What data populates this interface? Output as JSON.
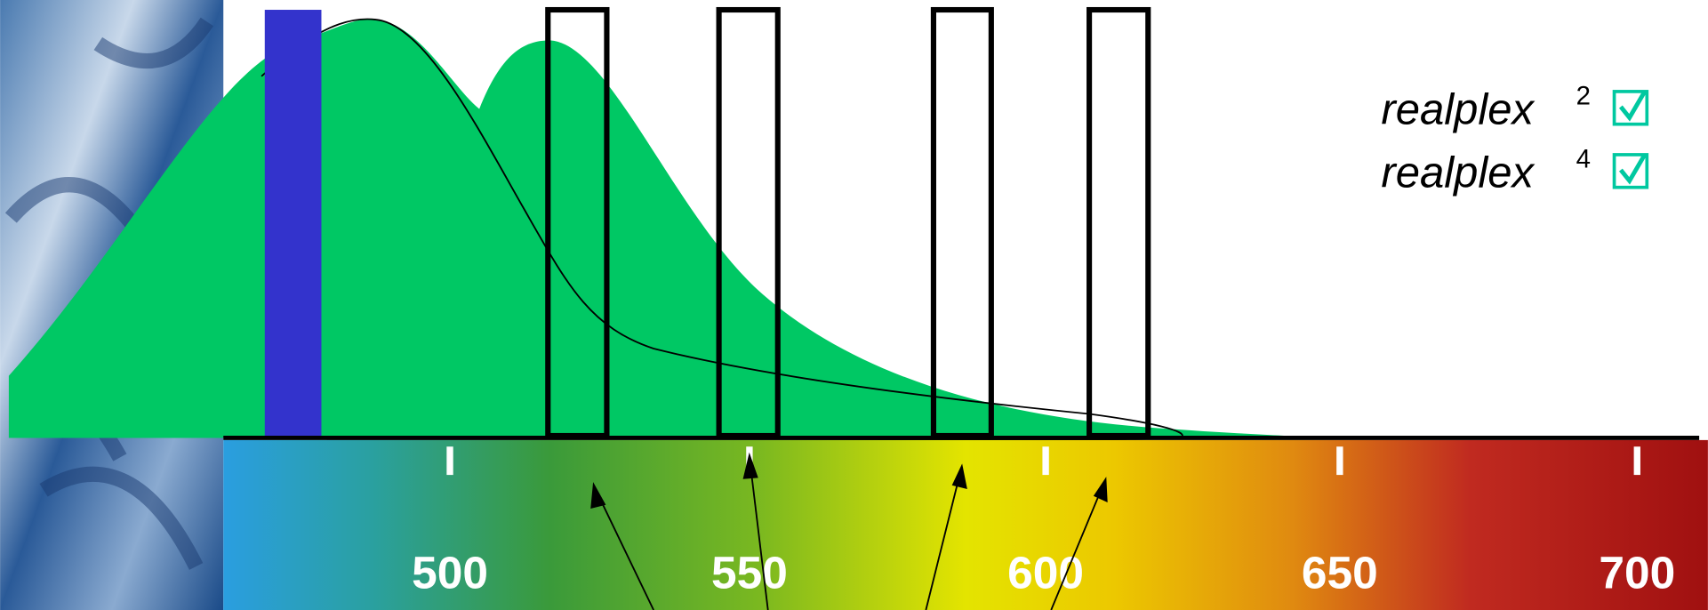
{
  "legend": [
    {
      "name": "realplex",
      "superscript": "2"
    },
    {
      "name": "realplex",
      "superscript": "4"
    }
  ],
  "scale": {
    "labels": [
      "500",
      "550",
      "600",
      "650",
      "700"
    ]
  }
}
